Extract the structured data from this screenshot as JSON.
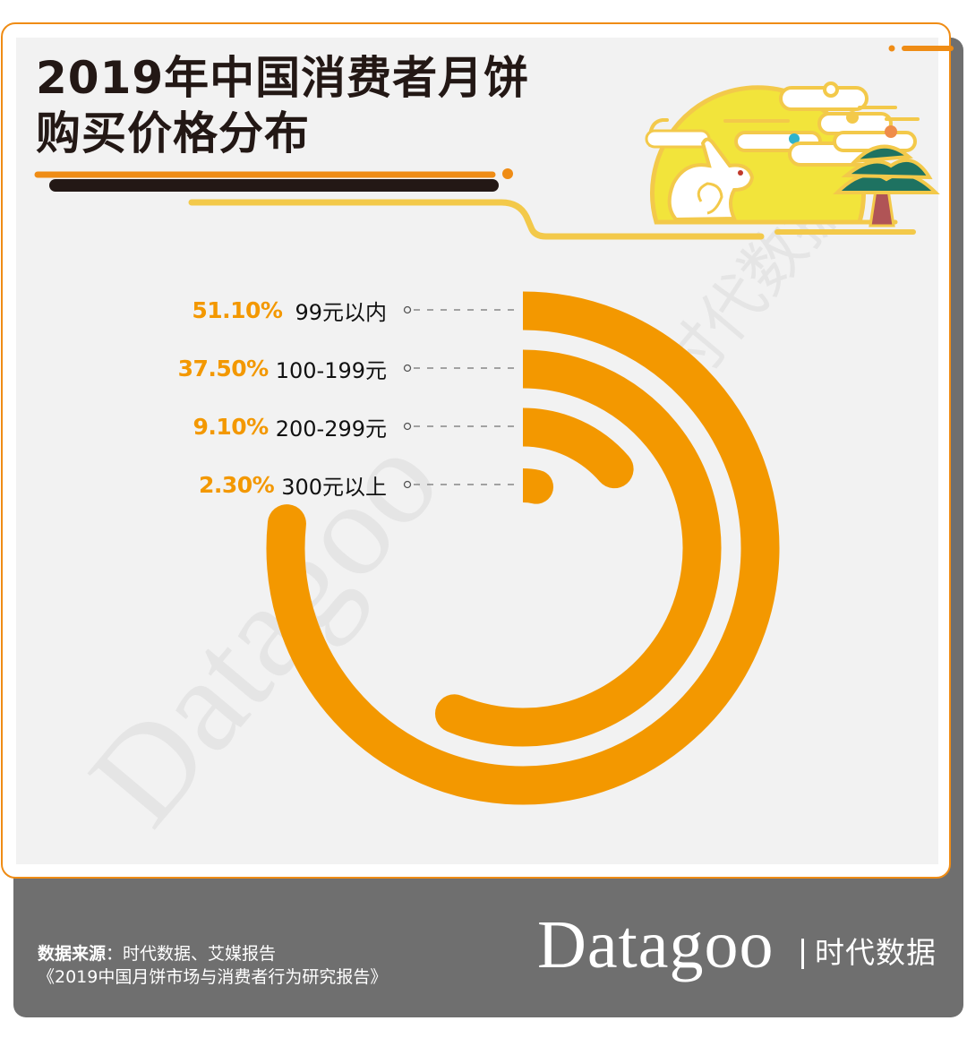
{
  "title": {
    "line1": "2019年中国消费者月饼",
    "line2": "购买价格分布"
  },
  "colors": {
    "accent": "#f39800",
    "border": "#ef8c15",
    "title": "#231815",
    "panel": "#f2f2f2",
    "footer": "#6f6f6f",
    "moon": "#f2e43b",
    "moon_outline": "#f3c94a",
    "tree_green": "#1e7261",
    "trunk": "#b05456"
  },
  "legend": {
    "items": [
      {
        "pct": "51.10%",
        "label": "99元以内"
      },
      {
        "pct": "37.50%",
        "label": "100-199元"
      },
      {
        "pct": "9.10%",
        "label": "200-299元"
      },
      {
        "pct": "2.30%",
        "label": "300元以上"
      }
    ]
  },
  "chart_data": {
    "type": "radial_bar",
    "title": "2019年中国消费者月饼购买价格分布",
    "categories": [
      "99元以内",
      "100-199元",
      "200-299元",
      "300元以上"
    ],
    "values": [
      51.1,
      37.5,
      9.1,
      2.3
    ],
    "unit": "%",
    "series": [
      {
        "name": "购买价格分布",
        "values": [
          51.1,
          37.5,
          9.1,
          2.3
        ]
      }
    ],
    "legend_position": "left",
    "grid": false
  },
  "footer": {
    "source_label": "数据来源",
    "source_text": "：时代数据、艾媒报告",
    "report": "《2019中国月饼市场与消费者行为研究报告》",
    "brand": "Datagoo",
    "brand_cn": "时代数据"
  },
  "watermark": {
    "text_en": "Datagoo",
    "text_cn": "时代数据"
  }
}
